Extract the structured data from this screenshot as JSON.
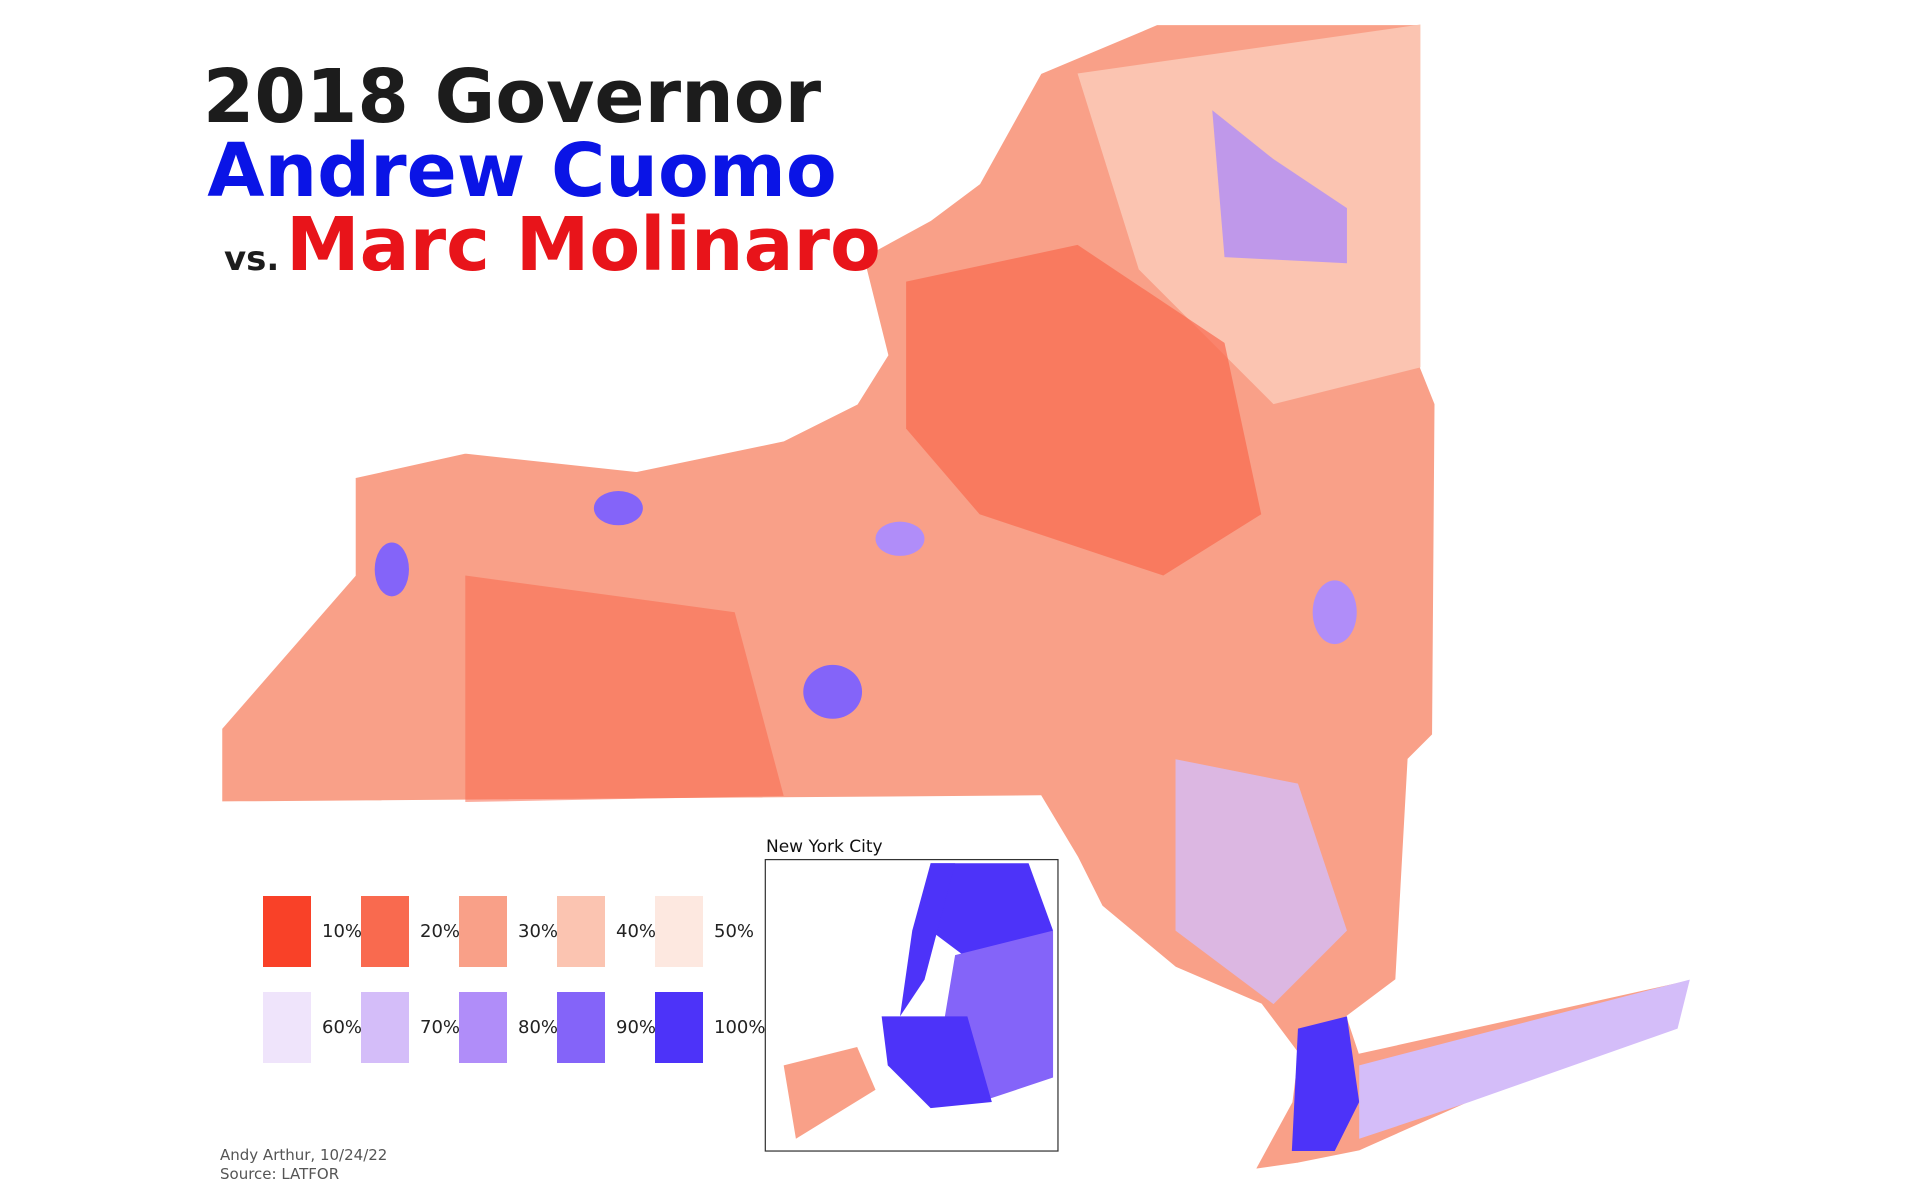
{
  "title": {
    "line1": "2018 Governor",
    "line2": "Andrew Cuomo",
    "vs": "vs.",
    "line3": "Marc Molinaro"
  },
  "legend": [
    {
      "label": "10%",
      "color": "#f94128"
    },
    {
      "label": "20%",
      "color": "#f96a4f"
    },
    {
      "label": "30%",
      "color": "#f9a088"
    },
    {
      "label": "40%",
      "color": "#fbc4b1"
    },
    {
      "label": "50%",
      "color": "#fde8e0"
    },
    {
      "label": "60%",
      "color": "#efe4fb"
    },
    {
      "label": "70%",
      "color": "#d4bdf9"
    },
    {
      "label": "80%",
      "color": "#b08df9"
    },
    {
      "label": "90%",
      "color": "#8464f9"
    },
    {
      "label": "100%",
      "color": "#4d33f9"
    }
  ],
  "inset": {
    "label": "New York City"
  },
  "credit": {
    "author": "Andy Arthur, 10/24/22",
    "source": "Source: LATFOR"
  }
}
